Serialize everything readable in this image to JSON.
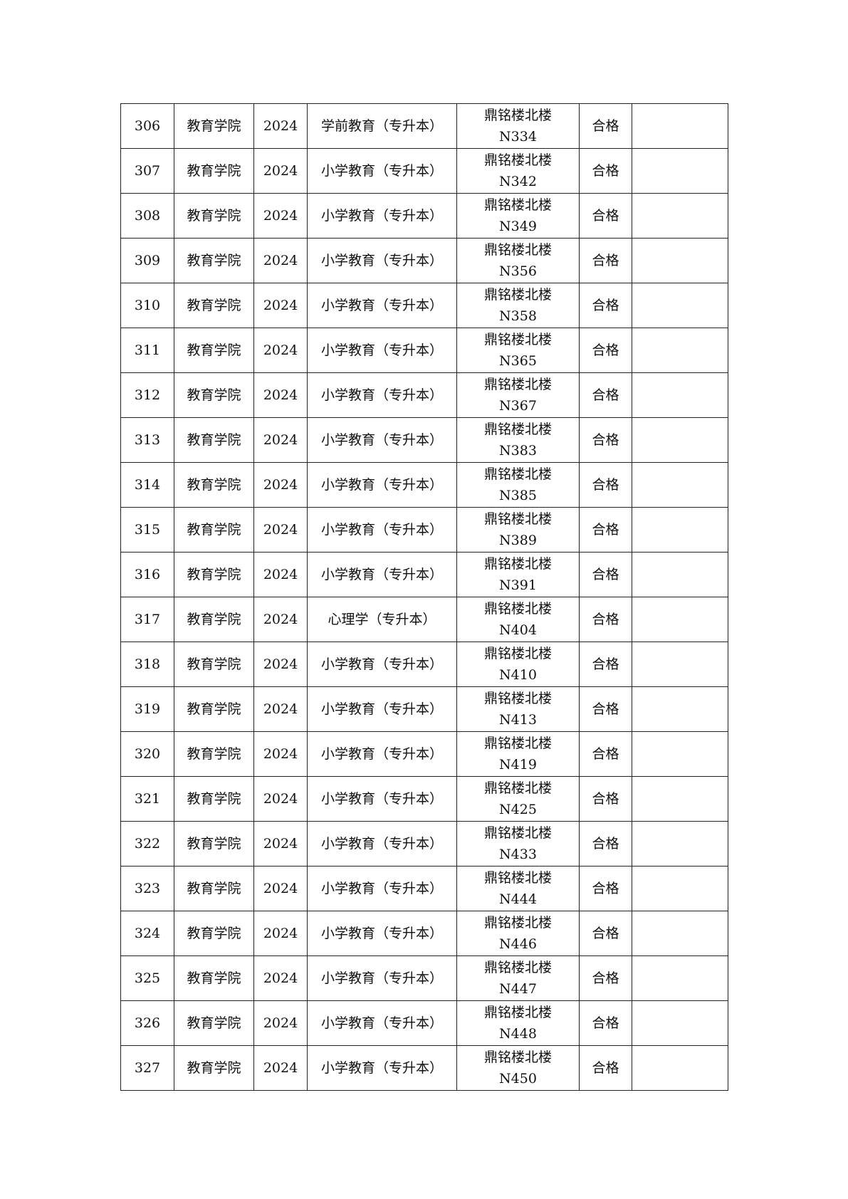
{
  "table": {
    "rows": [
      {
        "no": "306",
        "college": "教育学院",
        "year": "2024",
        "major": "学前教育（专升本）",
        "building": "鼎铭楼北楼",
        "room": "N334",
        "result": "合格",
        "note": ""
      },
      {
        "no": "307",
        "college": "教育学院",
        "year": "2024",
        "major": "小学教育（专升本）",
        "building": "鼎铭楼北楼",
        "room": "N342",
        "result": "合格",
        "note": ""
      },
      {
        "no": "308",
        "college": "教育学院",
        "year": "2024",
        "major": "小学教育（专升本）",
        "building": "鼎铭楼北楼",
        "room": "N349",
        "result": "合格",
        "note": ""
      },
      {
        "no": "309",
        "college": "教育学院",
        "year": "2024",
        "major": "小学教育（专升本）",
        "building": "鼎铭楼北楼",
        "room": "N356",
        "result": "合格",
        "note": ""
      },
      {
        "no": "310",
        "college": "教育学院",
        "year": "2024",
        "major": "小学教育（专升本）",
        "building": "鼎铭楼北楼",
        "room": "N358",
        "result": "合格",
        "note": ""
      },
      {
        "no": "311",
        "college": "教育学院",
        "year": "2024",
        "major": "小学教育（专升本）",
        "building": "鼎铭楼北楼",
        "room": "N365",
        "result": "合格",
        "note": ""
      },
      {
        "no": "312",
        "college": "教育学院",
        "year": "2024",
        "major": "小学教育（专升本）",
        "building": "鼎铭楼北楼",
        "room": "N367",
        "result": "合格",
        "note": ""
      },
      {
        "no": "313",
        "college": "教育学院",
        "year": "2024",
        "major": "小学教育（专升本）",
        "building": "鼎铭楼北楼",
        "room": "N383",
        "result": "合格",
        "note": ""
      },
      {
        "no": "314",
        "college": "教育学院",
        "year": "2024",
        "major": "小学教育（专升本）",
        "building": "鼎铭楼北楼",
        "room": "N385",
        "result": "合格",
        "note": ""
      },
      {
        "no": "315",
        "college": "教育学院",
        "year": "2024",
        "major": "小学教育（专升本）",
        "building": "鼎铭楼北楼",
        "room": "N389",
        "result": "合格",
        "note": ""
      },
      {
        "no": "316",
        "college": "教育学院",
        "year": "2024",
        "major": "小学教育（专升本）",
        "building": "鼎铭楼北楼",
        "room": "N391",
        "result": "合格",
        "note": ""
      },
      {
        "no": "317",
        "college": "教育学院",
        "year": "2024",
        "major": "心理学（专升本）",
        "building": "鼎铭楼北楼",
        "room": "N404",
        "result": "合格",
        "note": ""
      },
      {
        "no": "318",
        "college": "教育学院",
        "year": "2024",
        "major": "小学教育（专升本）",
        "building": "鼎铭楼北楼",
        "room": "N410",
        "result": "合格",
        "note": ""
      },
      {
        "no": "319",
        "college": "教育学院",
        "year": "2024",
        "major": "小学教育（专升本）",
        "building": "鼎铭楼北楼",
        "room": "N413",
        "result": "合格",
        "note": ""
      },
      {
        "no": "320",
        "college": "教育学院",
        "year": "2024",
        "major": "小学教育（专升本）",
        "building": "鼎铭楼北楼",
        "room": "N419",
        "result": "合格",
        "note": ""
      },
      {
        "no": "321",
        "college": "教育学院",
        "year": "2024",
        "major": "小学教育（专升本）",
        "building": "鼎铭楼北楼",
        "room": "N425",
        "result": "合格",
        "note": ""
      },
      {
        "no": "322",
        "college": "教育学院",
        "year": "2024",
        "major": "小学教育（专升本）",
        "building": "鼎铭楼北楼",
        "room": "N433",
        "result": "合格",
        "note": ""
      },
      {
        "no": "323",
        "college": "教育学院",
        "year": "2024",
        "major": "小学教育（专升本）",
        "building": "鼎铭楼北楼",
        "room": "N444",
        "result": "合格",
        "note": ""
      },
      {
        "no": "324",
        "college": "教育学院",
        "year": "2024",
        "major": "小学教育（专升本）",
        "building": "鼎铭楼北楼",
        "room": "N446",
        "result": "合格",
        "note": ""
      },
      {
        "no": "325",
        "college": "教育学院",
        "year": "2024",
        "major": "小学教育（专升本）",
        "building": "鼎铭楼北楼",
        "room": "N447",
        "result": "合格",
        "note": ""
      },
      {
        "no": "326",
        "college": "教育学院",
        "year": "2024",
        "major": "小学教育（专升本）",
        "building": "鼎铭楼北楼",
        "room": "N448",
        "result": "合格",
        "note": ""
      },
      {
        "no": "327",
        "college": "教育学院",
        "year": "2024",
        "major": "小学教育（专升本）",
        "building": "鼎铭楼北楼",
        "room": "N450",
        "result": "合格",
        "note": ""
      }
    ]
  }
}
